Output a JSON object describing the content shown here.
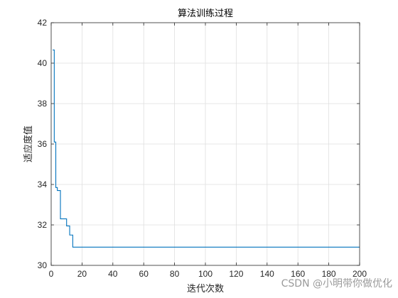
{
  "chart_data": {
    "type": "line",
    "title": "算法训练过程",
    "xlabel": "迭代次数",
    "ylabel": "适应度值",
    "xlim": [
      0,
      200
    ],
    "ylim": [
      30,
      42
    ],
    "xticks": [
      0,
      20,
      40,
      60,
      80,
      100,
      120,
      140,
      160,
      180,
      200
    ],
    "yticks": [
      30,
      32,
      34,
      36,
      38,
      40,
      42
    ],
    "grid": true,
    "series": [
      {
        "color": "#0072bd",
        "points": [
          [
            1,
            40.65
          ],
          [
            2,
            36.1
          ],
          [
            3,
            33.85
          ],
          [
            4,
            33.7
          ],
          [
            5,
            33.7
          ],
          [
            6,
            32.3
          ],
          [
            7,
            32.3
          ],
          [
            8,
            32.3
          ],
          [
            9,
            32.3
          ],
          [
            10,
            31.95
          ],
          [
            11,
            31.95
          ],
          [
            12,
            31.5
          ],
          [
            13,
            31.5
          ],
          [
            14,
            30.9
          ],
          [
            200,
            30.9
          ]
        ]
      }
    ]
  },
  "watermark": "CSDN @小明带你做优化"
}
